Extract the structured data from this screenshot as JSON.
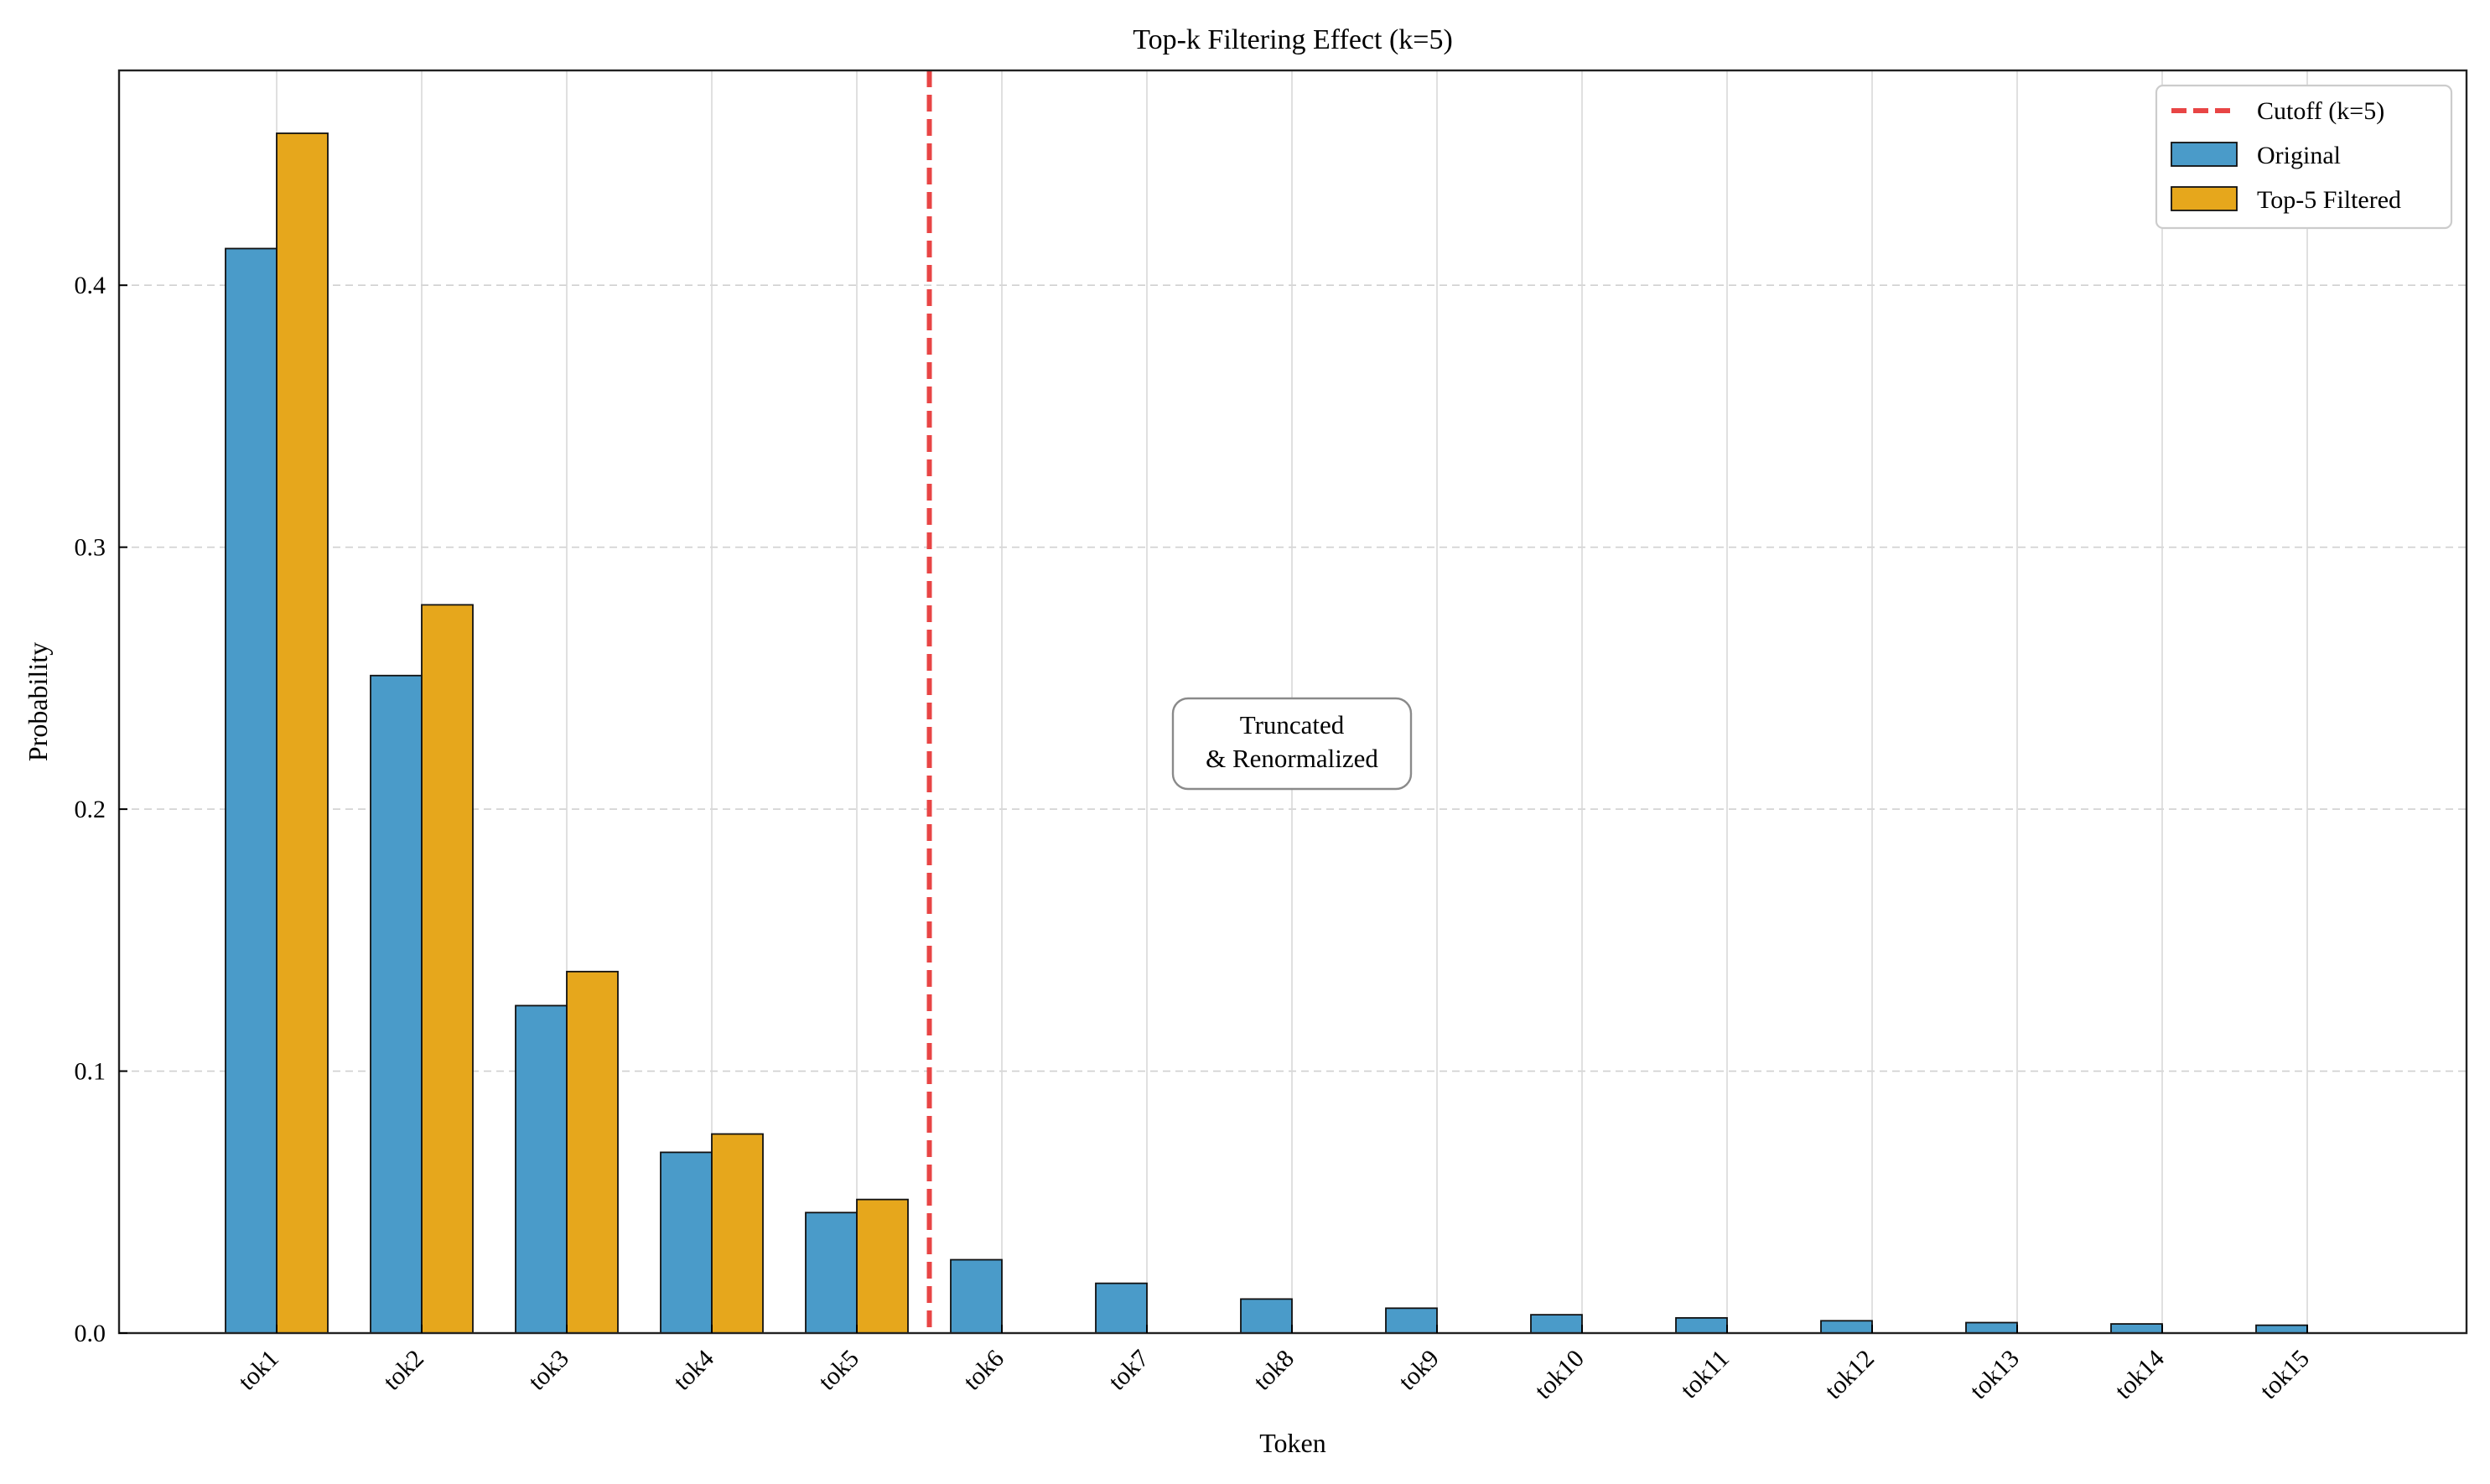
{
  "chart_data": {
    "type": "bar",
    "title": "Top-k Filtering Effect (k=5)",
    "xlabel": "Token",
    "ylabel": "Probability",
    "categories": [
      "tok1",
      "tok2",
      "tok3",
      "tok4",
      "tok5",
      "tok6",
      "tok7",
      "tok8",
      "tok9",
      "tok10",
      "tok11",
      "tok12",
      "tok13",
      "tok14",
      "tok15"
    ],
    "series": [
      {
        "name": "Original",
        "color": "#4a9bc9",
        "values": [
          0.414,
          0.251,
          0.125,
          0.069,
          0.046,
          0.028,
          0.019,
          0.013,
          0.0095,
          0.007,
          0.0058,
          0.0047,
          0.004,
          0.0035,
          0.003
        ]
      },
      {
        "name": "Top-5 Filtered",
        "color": "#e6a71c",
        "values": [
          0.458,
          0.278,
          0.138,
          0.076,
          0.051,
          0,
          0,
          0,
          0,
          0,
          0,
          0,
          0,
          0,
          0
        ]
      }
    ],
    "cutoff": {
      "label": "Cutoff (k=5)",
      "color": "#e84545",
      "position_between": [
        "tok5",
        "tok6"
      ]
    },
    "annotation": {
      "lines": [
        "Truncated",
        "& Renormalized"
      ],
      "x_category": "tok8",
      "y": 0.225
    },
    "ylim": [
      0,
      0.482
    ],
    "yticks": [
      0.0,
      0.1,
      0.2,
      0.3,
      0.4
    ],
    "ytick_labels": [
      "0.0",
      "0.1",
      "0.2",
      "0.3",
      "0.4"
    ],
    "grid": true,
    "legend_position": "top-right"
  }
}
